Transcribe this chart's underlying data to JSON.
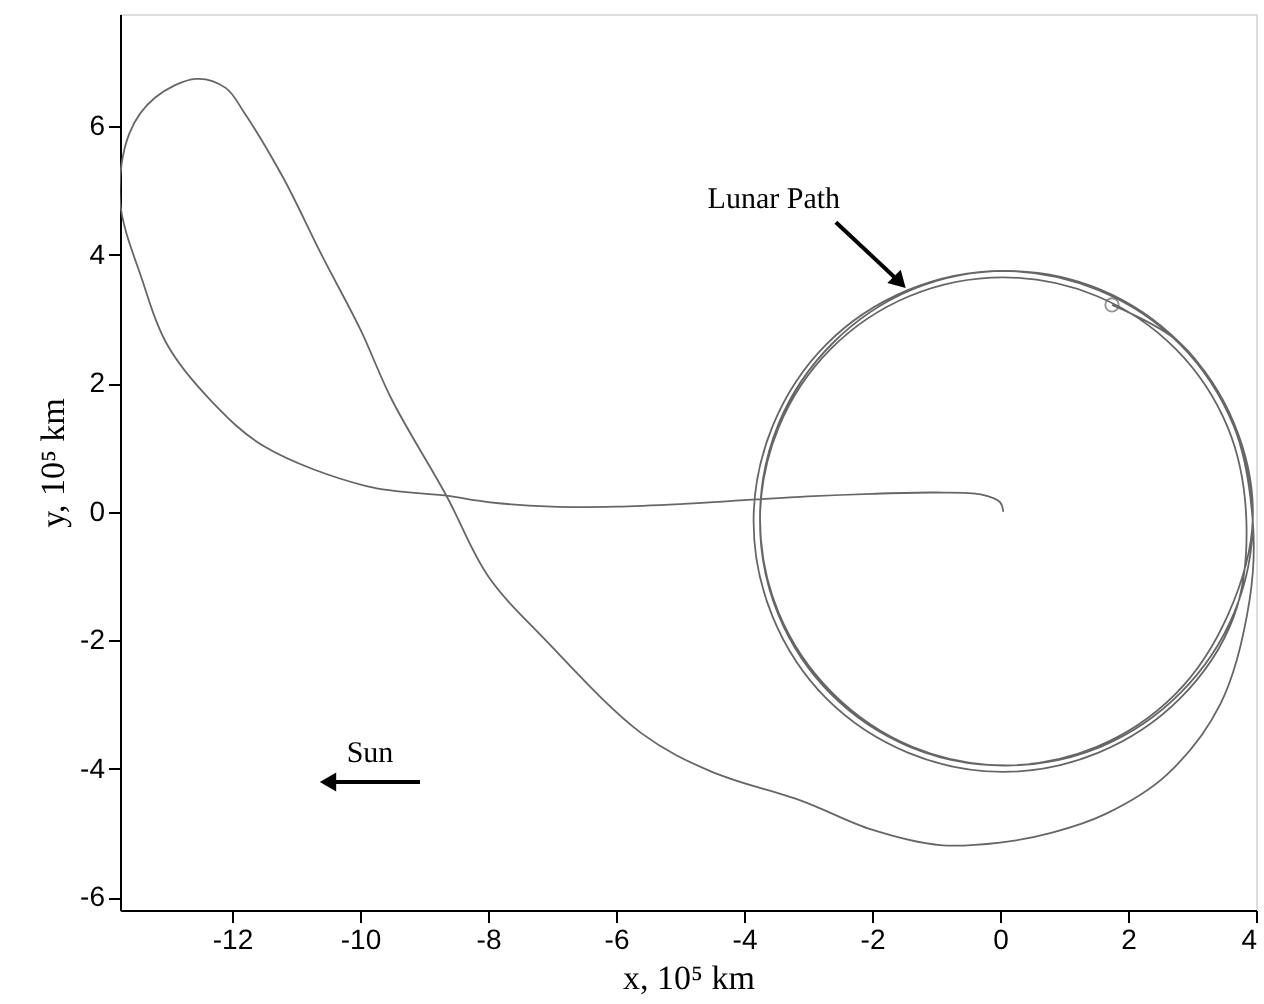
{
  "chart_data": {
    "type": "line",
    "xlabel": "x, 10⁵ km",
    "ylabel": "y, 10⁵ km",
    "annotations": [
      {
        "text": "Lunar Path",
        "x": -1.44,
        "y": 3.45
      },
      "Sun"
    ],
    "xlim": [
      -13.75,
      4
    ],
    "ylim": [
      -6.2,
      7.75
    ],
    "xticks": [
      -12,
      -10,
      -8,
      -6,
      -4,
      -2,
      0,
      2,
      4
    ],
    "yticks": [
      -6,
      -4,
      -2,
      0,
      2,
      4,
      6
    ],
    "grid": false,
    "series": [
      {
        "color": "#666666",
        "marker": "none",
        "line_style": "solid",
        "x": [
          0.05,
          0.0,
          -0.3,
          -1,
          -2,
          -3,
          -4,
          -5,
          -6,
          -7,
          -8,
          -8.65,
          -9.9,
          -11.5,
          -12.3,
          -13.0,
          -13.4,
          -13.75,
          -13.6,
          -13.2,
          -12.56,
          -12.1,
          -11.8,
          -11.2,
          -10.6,
          -10.0,
          -9.5,
          -8.65,
          -8.0,
          -7.1,
          -5.6,
          -4.5,
          -3.1,
          -2,
          -0.94,
          0,
          0.8,
          1.66,
          2.6,
          3.44,
          3.9,
          3.95,
          3.65,
          2.81,
          1.54,
          0.05,
          -1.44,
          -2.71,
          -3.55,
          -3.85,
          -3.55,
          -2.71,
          -1.44,
          0.05,
          1.54,
          2.81,
          3.65,
          3.85,
          3.56,
          2.74,
          1.51,
          0.05,
          -1.41,
          -2.64,
          -3.46,
          -3.75,
          -3.46,
          -2.64,
          -1.41,
          0.05,
          1.51,
          2.74,
          3.56,
          3.95,
          3.66,
          2.82,
          1.57,
          0.1,
          -1.37,
          -2.62,
          -3.46,
          -3.75,
          -3.46,
          -2.62,
          -1.37,
          0.1,
          1.57,
          2.82,
          3.66,
          3.95,
          3.65,
          2.82,
          1.75
        ],
        "values": [
          0.0,
          0.15,
          0.27,
          0.3,
          0.28,
          0.24,
          0.18,
          0.12,
          0.08,
          0.08,
          0.15,
          0.25,
          0.4,
          1.02,
          1.7,
          2.58,
          3.6,
          4.85,
          5.9,
          6.45,
          6.74,
          6.6,
          6.2,
          5.2,
          4.0,
          2.85,
          1.74,
          0.25,
          -1.0,
          -2.0,
          -3.45,
          -4.05,
          -4.5,
          -4.95,
          -5.19,
          -5.15,
          -5.0,
          -4.7,
          -4.1,
          -3.0,
          -1.37,
          -0.15,
          1.34,
          2.61,
          3.45,
          3.75,
          3.45,
          2.61,
          1.34,
          -0.15,
          -1.64,
          -2.91,
          -3.75,
          -4.05,
          -3.75,
          -2.91,
          -1.64,
          -0.15,
          1.31,
          2.54,
          3.36,
          3.65,
          3.36,
          2.54,
          1.31,
          -0.15,
          -1.61,
          -2.84,
          -3.66,
          -3.95,
          -3.66,
          -2.84,
          -1.61,
          -0.1,
          1.37,
          2.62,
          3.46,
          3.75,
          3.46,
          2.62,
          1.37,
          -0.1,
          -1.57,
          -2.82,
          -3.66,
          -3.95,
          -3.66,
          -2.82,
          -1.57,
          -0.12,
          1.36,
          2.62,
          3.22
        ]
      },
      {
        "type": "scatter",
        "color": "#666666",
        "marker": "circle",
        "x": [
          1.75
        ],
        "values": [
          3.22
        ]
      }
    ]
  }
}
